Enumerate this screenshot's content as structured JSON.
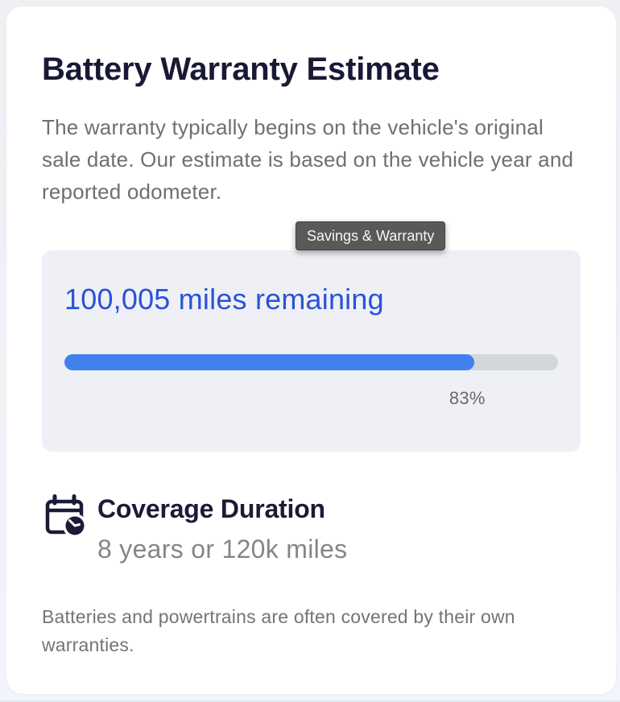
{
  "card": {
    "title": "Battery Warranty Estimate",
    "description": "The warranty typically begins on the vehicle's original sale date. Our estimate is based on the vehicle year and reported odometer.",
    "tooltip": {
      "label": "Savings & Warranty"
    },
    "estimate": {
      "headline": "100,005 miles remaining",
      "progress_percent": 83,
      "progress_label": "83%"
    },
    "coverage": {
      "icon": "calendar-clock-icon",
      "title": "Coverage Duration",
      "value": "8 years or 120k miles"
    },
    "footnote": "Batteries and powertrains are often covered by their own warranties."
  },
  "colors": {
    "heading_navy": "#191935",
    "body_gray": "#6f6f6f",
    "accent_text_blue": "#2b52d6",
    "progress_fill_blue": "#4181ee",
    "progress_track_gray": "#d3d7da",
    "panel_background": "#eef0f6",
    "tooltip_background": "#59595a",
    "tooltip_text": "#f5f5f5"
  }
}
